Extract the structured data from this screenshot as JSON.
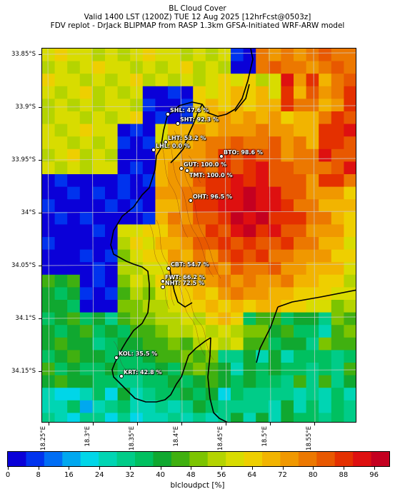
{
  "title": "BL Cloud Cover",
  "subtitle1": "Valid 1400 LST (1200Z) TUE 12 Aug 2025 [12hrFcst@0503z]",
  "subtitle2": "FDV replot - DrJack BLIPMAP from RASP 1.3km GFSA-Initiated WRF-ARW model",
  "chart_data": {
    "type": "heatmap",
    "title": "BL Cloud Cover",
    "lat_labels": [
      "33.85°S",
      "33.9°S",
      "33.95°S",
      "34°S",
      "34.05°S",
      "34.1°S",
      "34.15°S"
    ],
    "lon_labels": [
      "18.25°E",
      "18.3°E",
      "18.35°E",
      "18.4°E",
      "18.45°E",
      "18.5°E",
      "18.55°E"
    ],
    "colorbar_label": "blcloudpct [%]",
    "colorbar_ticks": [
      "0",
      "8",
      "16",
      "24",
      "32",
      "40",
      "48",
      "56",
      "64",
      "72",
      "80",
      "88",
      "96"
    ],
    "colorbar_range": [
      0,
      100
    ],
    "colorbar_colors": [
      "#0a00d8",
      "#0033ee",
      "#006ef5",
      "#00a8ef",
      "#00d6e8",
      "#00d5b3",
      "#00cc88",
      "#00c060",
      "#10a830",
      "#40b010",
      "#7cc400",
      "#b4d400",
      "#d8dc00",
      "#eecf00",
      "#f2b400",
      "#f09800",
      "#ec7800",
      "#e85800",
      "#e43000",
      "#de1010",
      "#c40020"
    ],
    "stations": [
      {
        "name": "SHL",
        "value": "47.6 %"
      },
      {
        "name": "SHT",
        "value": "92.3 %"
      },
      {
        "name": "LHT",
        "value": "53.2 %"
      },
      {
        "name": "LHL",
        "value": "0.0 %"
      },
      {
        "name": "BTO",
        "value": "98.6 %"
      },
      {
        "name": "GUT",
        "value": "100.0 %"
      },
      {
        "name": "TMT",
        "value": "100.0 %"
      },
      {
        "name": "OHT",
        "value": "96.5 %"
      },
      {
        "name": "CBT",
        "value": "54.7 %"
      },
      {
        "name": "FWT",
        "value": "66.2 %"
      },
      {
        "name": "NHT",
        "value": "72.5 %"
      },
      {
        "name": "KOL",
        "value": "35.5 %"
      },
      {
        "name": "KRT",
        "value": "42.8 %"
      }
    ]
  }
}
